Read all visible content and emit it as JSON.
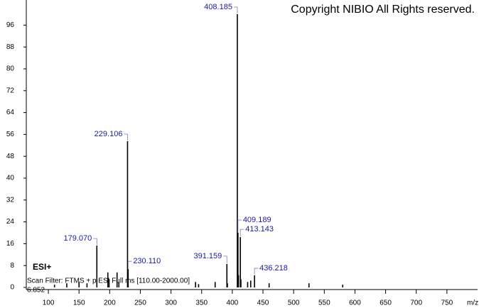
{
  "chart_data": {
    "type": "stick",
    "title": "Copyright NIBIO All Rights reserved.",
    "ion_mode": "ESI+",
    "scan_filter": "Scan Filter: FTMS + p ESI Full ms [110.00-2000.00]",
    "y_axis_offset_label": "6.852",
    "x_label": "m/z",
    "x": [
      110,
      130,
      150,
      163,
      179.07,
      197,
      199,
      212,
      215,
      229.106,
      230.11,
      340,
      345,
      372,
      391.159,
      392,
      408.185,
      409.189,
      410,
      413.143,
      414,
      425,
      430,
      436.218,
      460,
      525,
      580
    ],
    "values": [
      1.0,
      1.5,
      2.0,
      1.5,
      15.3,
      5.5,
      3.0,
      5.5,
      2.0,
      53.5,
      6.7,
      2.0,
      1.2,
      2.0,
      8.6,
      1.5,
      100,
      20,
      4.5,
      18.4,
      3.0,
      2.0,
      2.5,
      4.4,
      1.5,
      1.5,
      1.0
    ],
    "x_labels": [
      null,
      null,
      null,
      null,
      "179.070",
      null,
      null,
      null,
      null,
      "229.106",
      "230.110",
      null,
      null,
      null,
      "391.159",
      null,
      "408.185",
      "409.189",
      null,
      "413.143",
      null,
      null,
      null,
      "436.218",
      null,
      null,
      null
    ],
    "color": "#000000",
    "label_color": "#1a1aa0",
    "xlim": [
      64,
      800
    ],
    "ylim": [
      0,
      100
    ],
    "xticks": [
      100,
      150,
      200,
      250,
      300,
      350,
      400,
      450,
      500,
      550,
      600,
      650,
      700,
      750
    ],
    "yticks": [
      0,
      8,
      16,
      24,
      32,
      40,
      48,
      56,
      64,
      72,
      80,
      88,
      96
    ]
  }
}
